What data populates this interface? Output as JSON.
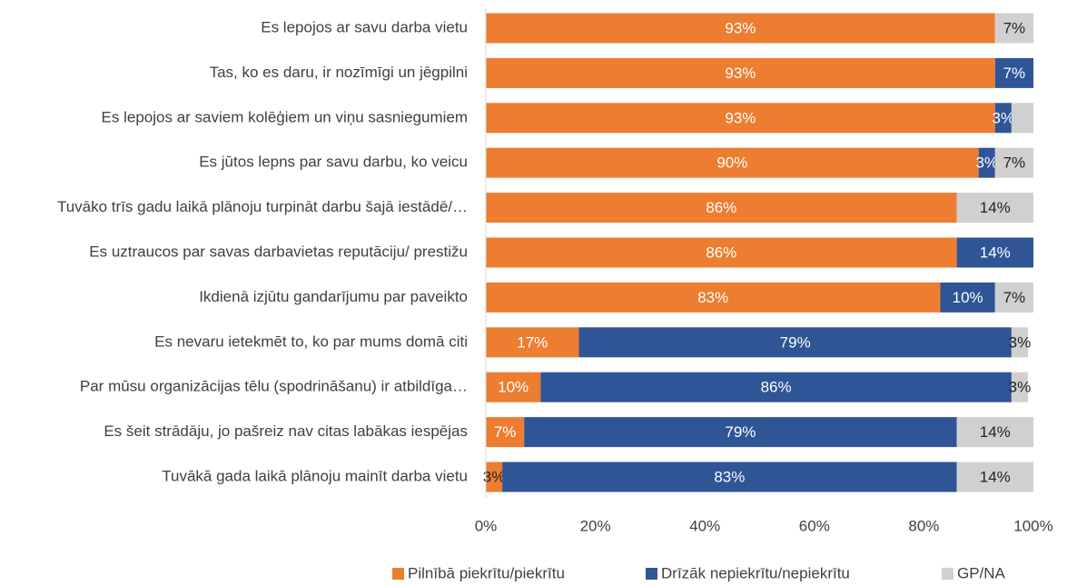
{
  "chart_data": {
    "type": "stacked-barh",
    "categories": [
      "Es lepojos ar savu darba vietu",
      "Tas, ko es daru, ir nozīmīgi un jēgpilni",
      "Es lepojos ar saviem kolēģiem un viņu sasniegumiem",
      "Es jūtos lepns par savu darbu, ko veicu",
      "Tuvāko trīs gadu laikā plānoju turpināt darbu šajā iestādē/…",
      "Es uztraucos par savas darbavietas reputāciju/ prestižu",
      "Ikdienā izjūtu gandarījumu par paveikto",
      "Es nevaru ietekmēt to, ko par mums domā citi",
      "Par mūsu organizācijas tēlu (spodrināšanu) ir atbildīga…",
      "Es šeit strādāju, jo pašreiz nav citas labākas iespējas",
      "Tuvākā gada laikā plānoju mainīt darba vietu"
    ],
    "series": [
      {
        "name": "Pilnībā piekrītu/piekrītu",
        "color": "#ed7d31",
        "values": [
          93,
          93,
          93,
          90,
          86,
          86,
          83,
          17,
          10,
          7,
          3
        ],
        "value_labels": [
          "93%",
          "93%",
          "93%",
          "90%",
          "86%",
          "86%",
          "83%",
          "17%",
          "10%",
          "7%",
          "3%"
        ]
      },
      {
        "name": "Drīzāk nepiekrītu/nepiekrītu",
        "color": "#2f5597",
        "values": [
          null,
          7,
          3,
          3,
          null,
          14,
          10,
          79,
          86,
          79,
          83
        ],
        "value_labels": [
          null,
          "7%",
          "3%",
          "3%",
          null,
          "14%",
          "10%",
          "79%",
          "86%",
          "79%",
          "83%"
        ]
      },
      {
        "name": "GP/NA",
        "color": "#d0d0d0",
        "values": [
          7,
          null,
          4,
          7,
          14,
          null,
          7,
          3,
          3,
          14,
          14
        ],
        "value_labels": [
          "7%",
          null,
          null,
          "7%",
          "14%",
          null,
          "7%",
          "3%",
          "3%",
          "14%",
          "14%"
        ]
      }
    ],
    "xlim": [
      0,
      100
    ],
    "xticks": [
      {
        "value": 0,
        "label": "0%"
      },
      {
        "value": 20,
        "label": "20%"
      },
      {
        "value": 40,
        "label": "40%"
      },
      {
        "value": 60,
        "label": "60%"
      },
      {
        "value": 80,
        "label": "80%"
      },
      {
        "value": 100,
        "label": "100%"
      }
    ]
  }
}
